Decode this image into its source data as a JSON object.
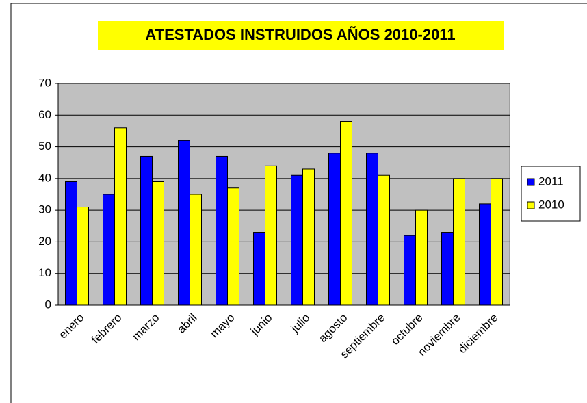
{
  "chart_data": {
    "type": "bar",
    "title": "ATESTADOS INSTRUIDOS AÑOS 2010-2011",
    "categories": [
      "enero",
      "febrero",
      "marzo",
      "abril",
      "mayo",
      "junio",
      "julio",
      "agosto",
      "septiembre",
      "octubre",
      "noviembre",
      "diciembre"
    ],
    "series": [
      {
        "name": "2011",
        "color": "#0000ff",
        "values": [
          39,
          35,
          47,
          52,
          47,
          23,
          41,
          48,
          48,
          22,
          23,
          32
        ]
      },
      {
        "name": "2010",
        "color": "#ffff00",
        "values": [
          31,
          56,
          39,
          35,
          37,
          44,
          43,
          58,
          41,
          30,
          40,
          40
        ]
      }
    ],
    "ylim": [
      0,
      70
    ],
    "yticks": [
      0,
      10,
      20,
      30,
      40,
      50,
      60,
      70
    ],
    "grid": true,
    "legend": "right"
  }
}
